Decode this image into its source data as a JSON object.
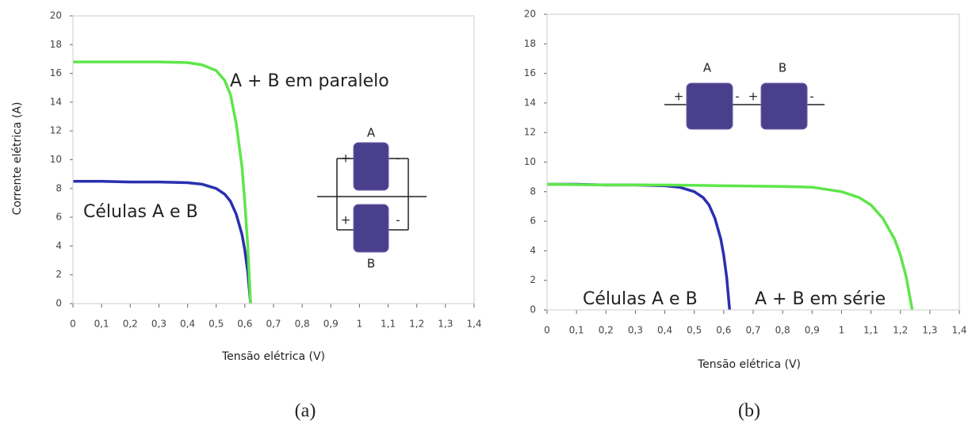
{
  "chart_data": [
    {
      "type": "line",
      "y_label": "Corrente elétrica (A)",
      "x_label": "Tensão elétrica (V)",
      "caption": "(a)",
      "xlim": [
        0,
        1.4
      ],
      "ylim": [
        0,
        20
      ],
      "xticks": [
        0,
        {
          "value": 0.1,
          "label": "0,1"
        },
        {
          "value": 0.2,
          "label": "0,2"
        },
        {
          "value": 0.3,
          "label": "0,3"
        },
        {
          "value": 0.4,
          "label": "0,4"
        },
        {
          "value": 0.5,
          "label": "0,5"
        },
        {
          "value": 0.6,
          "label": "0,6"
        },
        {
          "value": 0.7,
          "label": "0,7"
        },
        {
          "value": 0.8,
          "label": "0,8"
        },
        {
          "value": 0.9,
          "label": "0,9"
        },
        1,
        {
          "value": 1.1,
          "label": "1,1"
        },
        {
          "value": 1.2,
          "label": "1,2"
        },
        {
          "value": 1.3,
          "label": "1,3"
        },
        {
          "value": 1.4,
          "label": "1,4"
        }
      ],
      "yticks": [
        0,
        2,
        4,
        6,
        8,
        10,
        12,
        14,
        16,
        18,
        20
      ],
      "inset_labels": [
        "A",
        "B",
        "+",
        "-",
        "+",
        "-"
      ],
      "series": [
        {
          "name": "A + B em paralelo",
          "color": "#5ee64a",
          "x": [
            0,
            0.1,
            0.2,
            0.3,
            0.4,
            0.45,
            0.5,
            0.53,
            0.55,
            0.57,
            0.59,
            0.6,
            0.61,
            0.62
          ],
          "values": [
            16.8,
            16.8,
            16.8,
            16.8,
            16.75,
            16.6,
            16.2,
            15.5,
            14.5,
            12.5,
            9.5,
            7,
            4,
            0
          ]
        },
        {
          "name": "Células A e B",
          "color": "#2a2fb0",
          "x": [
            0,
            0.1,
            0.2,
            0.3,
            0.4,
            0.45,
            0.5,
            0.53,
            0.55,
            0.57,
            0.59,
            0.6,
            0.61,
            0.62
          ],
          "values": [
            8.5,
            8.5,
            8.45,
            8.45,
            8.4,
            8.3,
            8.0,
            7.6,
            7.1,
            6.2,
            4.8,
            3.7,
            2.2,
            0
          ]
        }
      ]
    },
    {
      "type": "line",
      "x_label": "Tensão elétrica (V)",
      "caption": "(b)",
      "xlim": [
        0,
        1.4
      ],
      "ylim": [
        0,
        20
      ],
      "xticks": [
        0,
        {
          "value": 0.1,
          "label": "0,1"
        },
        {
          "value": 0.2,
          "label": "0,2"
        },
        {
          "value": 0.3,
          "label": "0,3"
        },
        {
          "value": 0.4,
          "label": "0,4"
        },
        {
          "value": 0.5,
          "label": "0,5"
        },
        {
          "value": 0.6,
          "label": "0,6"
        },
        {
          "value": 0.7,
          "label": "0,7"
        },
        {
          "value": 0.8,
          "label": "0,8"
        },
        {
          "value": 0.9,
          "label": "0,9"
        },
        1,
        {
          "value": 1.1,
          "label": "1,1"
        },
        {
          "value": 1.2,
          "label": "1,2"
        },
        {
          "value": 1.3,
          "label": "1,3"
        },
        {
          "value": 1.4,
          "label": "1,4"
        }
      ],
      "yticks": [
        0,
        2,
        4,
        6,
        8,
        10,
        12,
        14,
        16,
        18,
        20
      ],
      "inset_labels": [
        "A",
        "B",
        "+",
        "-",
        "+",
        "-"
      ],
      "series": [
        {
          "name": "A + B em série",
          "color": "#5ee64a",
          "x": [
            0,
            0.2,
            0.4,
            0.6,
            0.8,
            0.9,
            1.0,
            1.06,
            1.1,
            1.14,
            1.18,
            1.2,
            1.22,
            1.24
          ],
          "values": [
            8.5,
            8.45,
            8.45,
            8.4,
            8.35,
            8.3,
            8.0,
            7.6,
            7.1,
            6.2,
            4.8,
            3.7,
            2.2,
            0
          ]
        },
        {
          "name": "Células A e B",
          "color": "#2a2fb0",
          "x": [
            0,
            0.1,
            0.2,
            0.3,
            0.4,
            0.45,
            0.5,
            0.53,
            0.55,
            0.57,
            0.59,
            0.6,
            0.61,
            0.62
          ],
          "values": [
            8.5,
            8.5,
            8.45,
            8.45,
            8.4,
            8.3,
            8.0,
            7.6,
            7.1,
            6.2,
            4.8,
            3.7,
            2.2,
            0
          ]
        }
      ]
    }
  ]
}
